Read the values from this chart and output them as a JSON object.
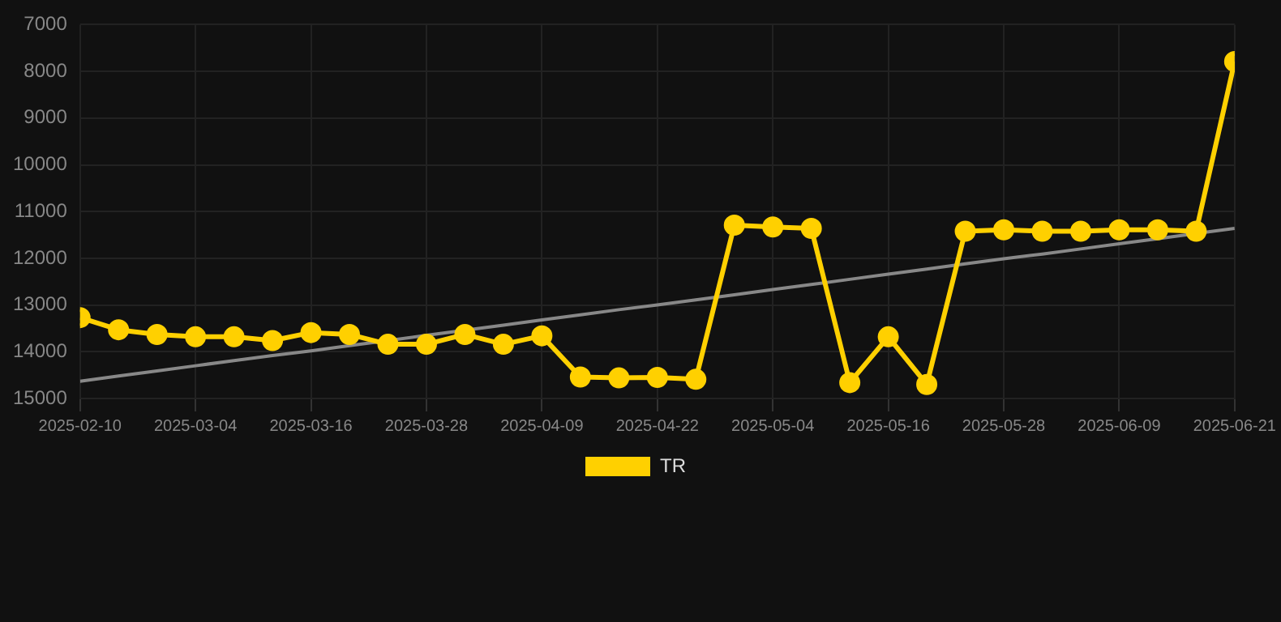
{
  "chart_data": {
    "type": "line",
    "categories": [
      "2025-02-10",
      null,
      null,
      "2025-03-04",
      null,
      null,
      "2025-03-16",
      null,
      null,
      "2025-03-28",
      null,
      null,
      "2025-04-09",
      null,
      null,
      "2025-04-22",
      null,
      null,
      "2025-05-04",
      null,
      null,
      "2025-05-16",
      null,
      null,
      "2025-05-28",
      null,
      null,
      "2025-06-09",
      null,
      null,
      "2025-06-21"
    ],
    "series": [
      {
        "name": "TR",
        "color": "#ffd000",
        "marker": "circle",
        "values": [
          13270,
          13530,
          13630,
          13680,
          13680,
          13760,
          13590,
          13630,
          13840,
          13840,
          13630,
          13840,
          13660,
          14540,
          14560,
          14550,
          14590,
          11290,
          11330,
          11360,
          14660,
          13680,
          14700,
          11420,
          11390,
          11420,
          11420,
          11390,
          11390,
          11420,
          7790
        ]
      },
      {
        "type": "line",
        "color": "#888888",
        "marker": "none",
        "values": [
          14630,
          14520,
          14410,
          14300,
          14190,
          14080,
          13980,
          13870,
          13760,
          13650,
          13540,
          13430,
          13320,
          13210,
          13100,
          13000,
          12890,
          12780,
          12670,
          12560,
          12450,
          12340,
          12230,
          12120,
          12010,
          11910,
          11800,
          11690,
          11580,
          11470,
          11360
        ]
      }
    ],
    "ylim": [
      15000,
      7000
    ],
    "yticks": [
      7000,
      8000,
      9000,
      10000,
      11000,
      12000,
      13000,
      14000,
      15000
    ],
    "grid": true,
    "legend": "bottom"
  }
}
